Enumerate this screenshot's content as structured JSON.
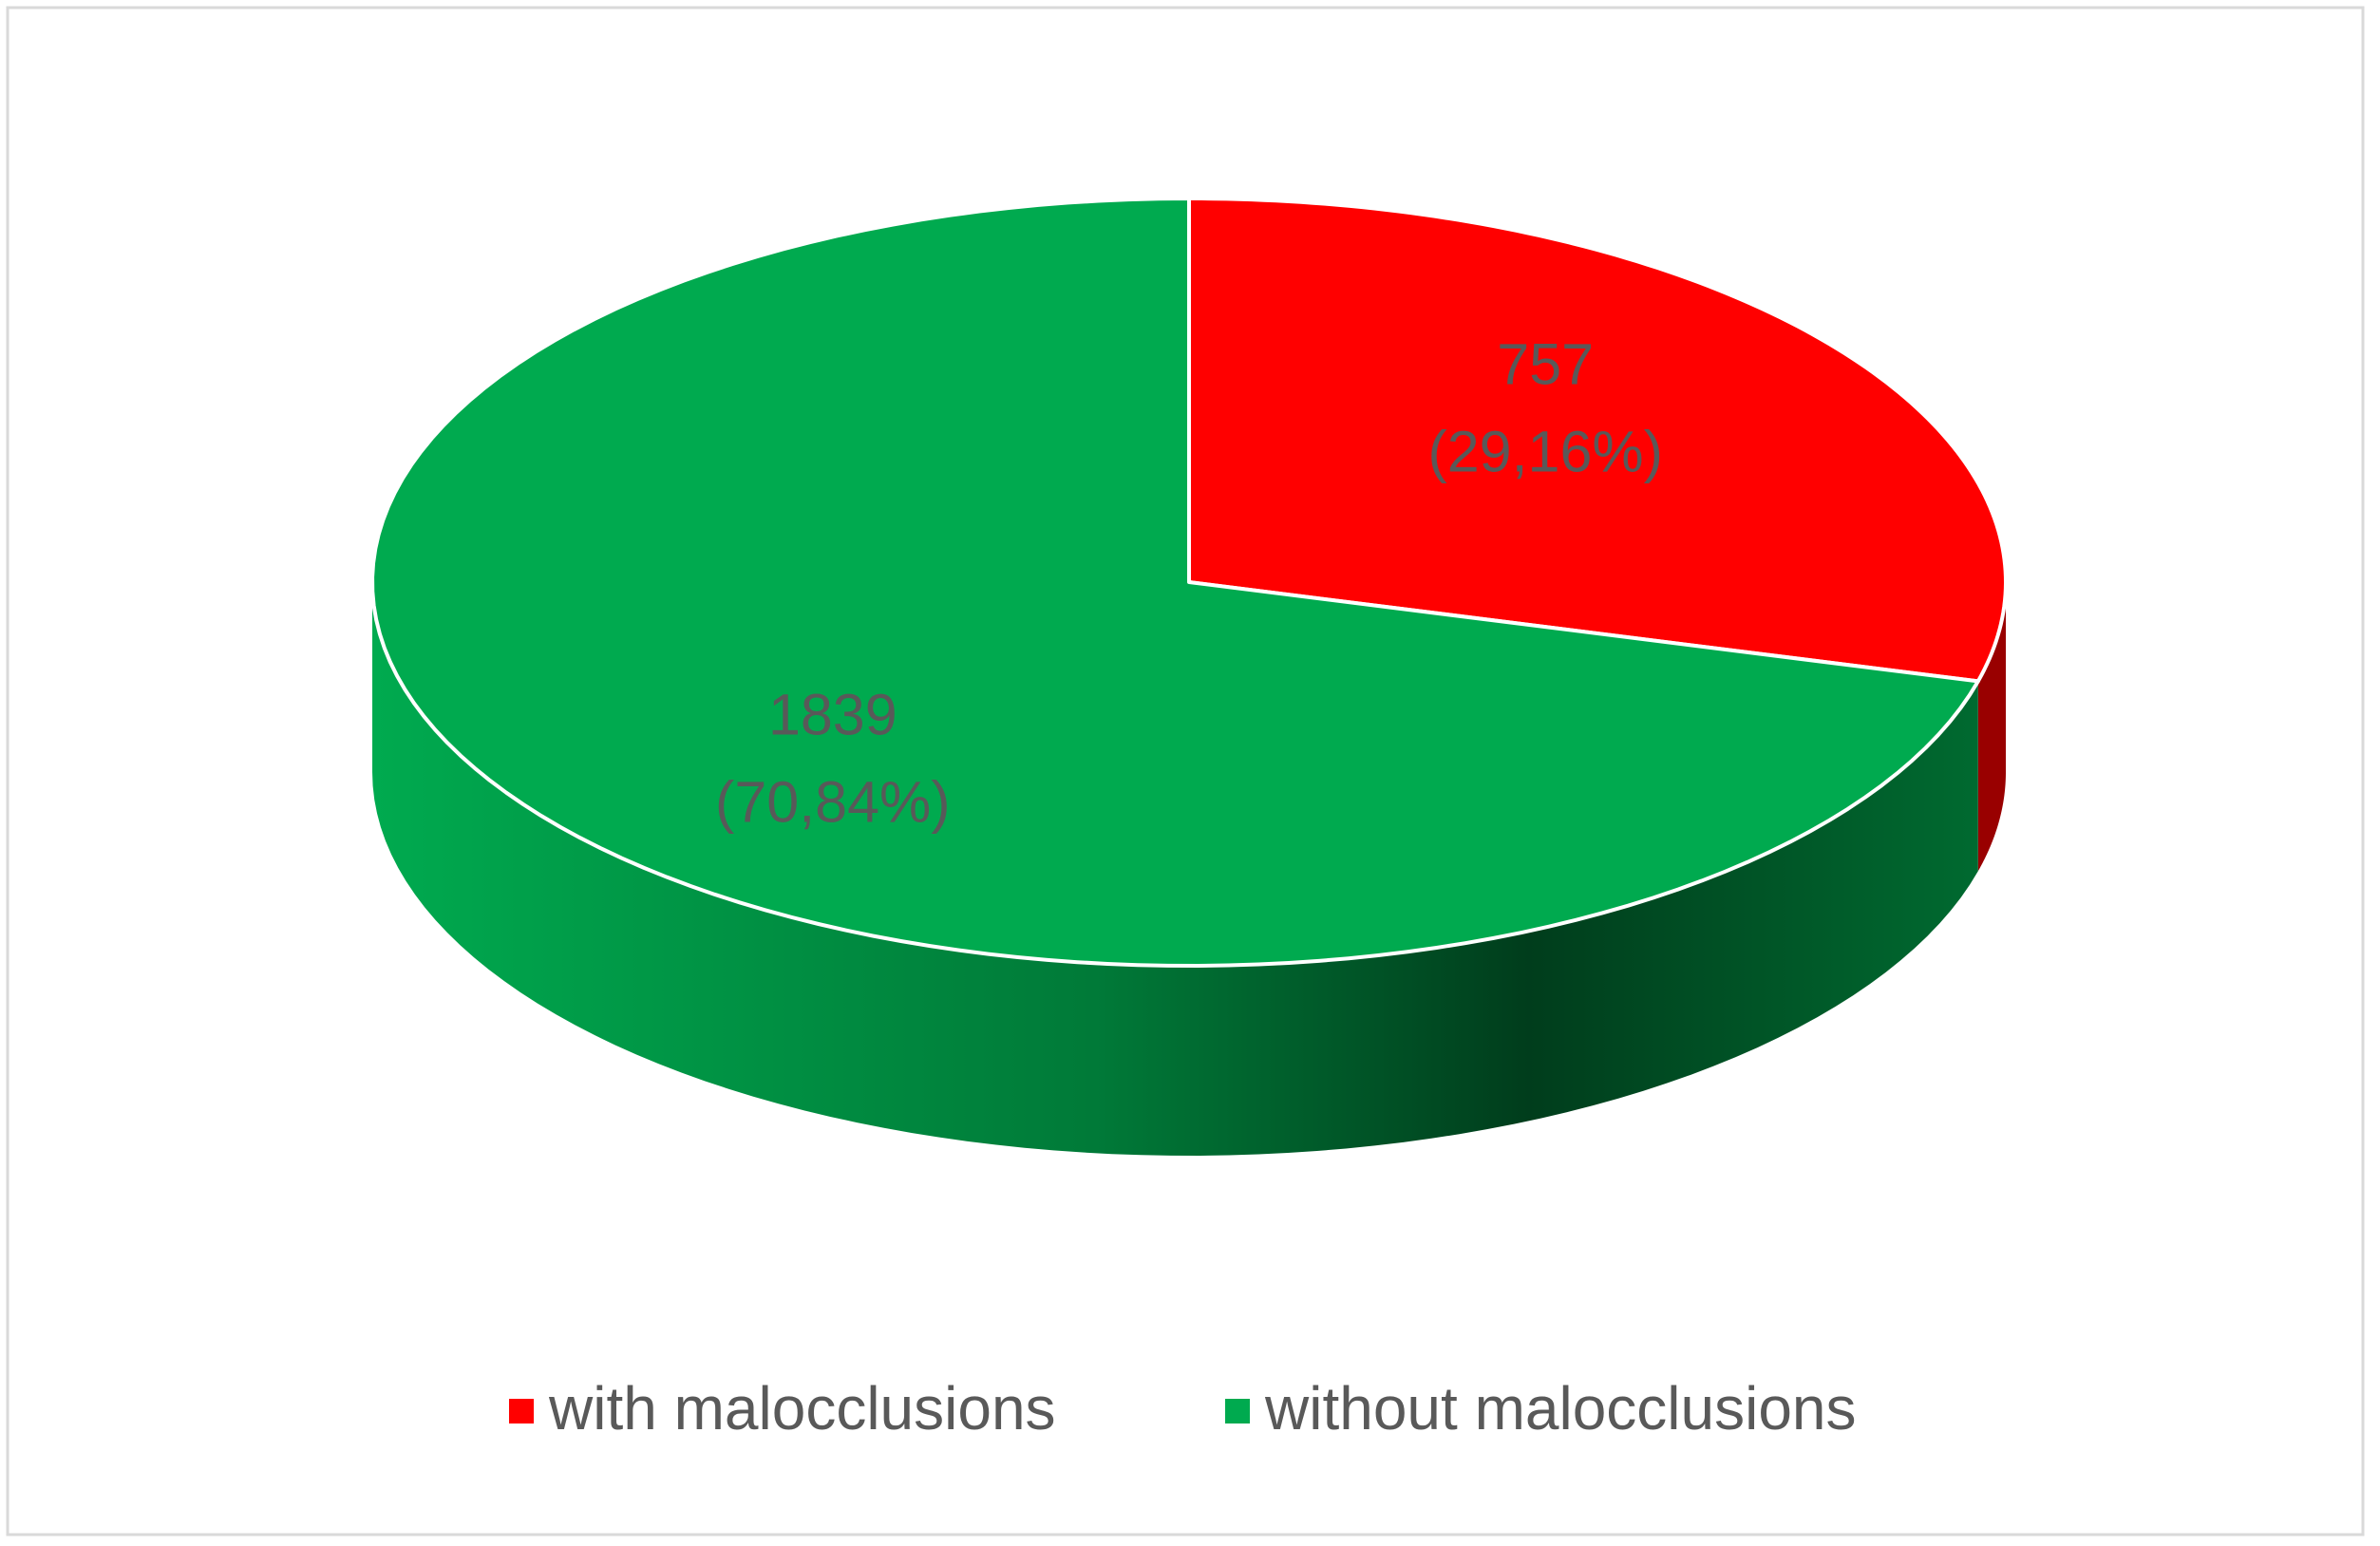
{
  "chart_data": {
    "type": "pie3d",
    "categories": [
      "with malocclusions",
      "without malocclusions"
    ],
    "values": [
      757,
      1839
    ],
    "percentages": [
      29.16,
      70.84
    ],
    "percentage_labels": [
      "(29,16%)",
      "(70,84%)"
    ],
    "colors": [
      "#ff0000",
      "#00aa4f"
    ],
    "legend": "bottom"
  }
}
